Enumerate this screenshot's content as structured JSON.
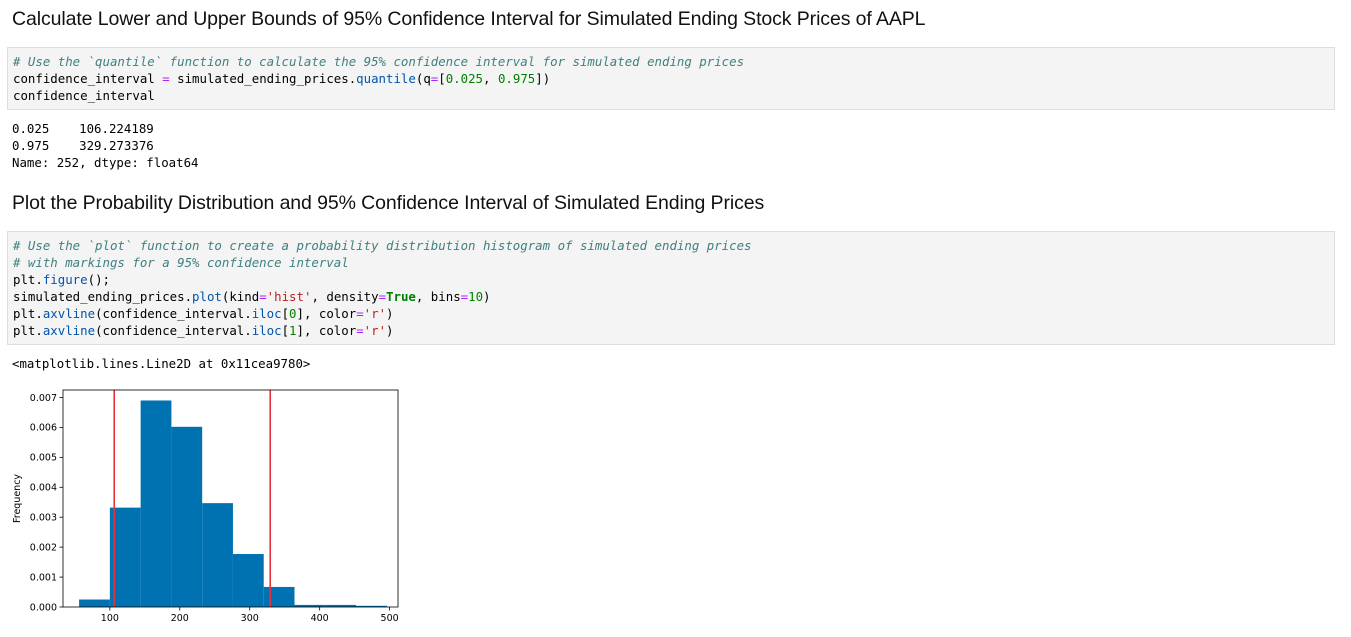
{
  "headings": {
    "h1": "Calculate Lower and Upper Bounds of 95% Confidence Interval for Simulated Ending Stock Prices of AAPL",
    "h2": "Plot the Probability Distribution and 95% Confidence Interval of Simulated Ending Prices"
  },
  "cell1": {
    "comment": "# Use the `quantile` function to calculate the 95% confidence interval for simulated ending prices",
    "l2_a": "confidence_interval ",
    "l2_eq": "=",
    "l2_b": " simulated_ending_prices.",
    "l2_fn": "quantile",
    "l2_c": "(q",
    "l2_eq2": "=",
    "l2_d": "[",
    "l2_n1": "0.025",
    "l2_e": ", ",
    "l2_n2": "0.975",
    "l2_f": "])",
    "l3": "confidence_interval"
  },
  "output1": {
    "row1": "0.025    106.224189",
    "row2": "0.975    329.273376",
    "row3": "Name: 252, dtype: float64"
  },
  "cell2": {
    "comment1": "# Use the `plot` function to create a probability distribution histogram of simulated ending prices",
    "comment2": "# with markings for a 95% confidence interval",
    "l3_a": "plt.",
    "l3_fn": "figure",
    "l3_b": "();",
    "l4_a": "simulated_ending_prices.",
    "l4_fn": "plot",
    "l4_b": "(kind",
    "l4_eq": "=",
    "l4_str": "'hist'",
    "l4_c": ", density",
    "l4_eq2": "=",
    "l4_kw": "True",
    "l4_d": ", bins",
    "l4_eq3": "=",
    "l4_num": "10",
    "l4_e": ")",
    "l5_a": "plt.",
    "l5_fn": "axvline",
    "l5_b": "(confidence_interval.",
    "l5_fn2": "iloc",
    "l5_c": "[",
    "l5_num": "0",
    "l5_d": "], color",
    "l5_eq": "=",
    "l5_str": "'r'",
    "l5_e": ")",
    "l6_a": "plt.",
    "l6_fn": "axvline",
    "l6_b": "(confidence_interval.",
    "l6_fn2": "iloc",
    "l6_c": "[",
    "l6_num": "1",
    "l6_d": "], color",
    "l6_eq": "=",
    "l6_str": "'r'",
    "l6_e": ")"
  },
  "output2": {
    "text": "<matplotlib.lines.Line2D at 0x11cea9780>"
  },
  "chart_data": {
    "type": "bar",
    "ylabel": "Frequency",
    "xlim": [
      33,
      512
    ],
    "ylim": [
      0,
      0.00725
    ],
    "xticks": [
      100,
      200,
      300,
      400,
      500
    ],
    "yticks": [
      "0.000",
      "0.001",
      "0.002",
      "0.003",
      "0.004",
      "0.005",
      "0.006",
      "0.007"
    ],
    "bin_edges": [
      56,
      100,
      144,
      188,
      232,
      276,
      320,
      364,
      408,
      452,
      496
    ],
    "values": [
      0.00025,
      0.00332,
      0.0069,
      0.00602,
      0.00347,
      0.00177,
      0.00067,
      7e-05,
      7e-05,
      4e-05
    ],
    "bar_color": "#0072b2",
    "vlines": [
      106.224189,
      329.273376
    ],
    "vline_color": "#e8323c"
  }
}
